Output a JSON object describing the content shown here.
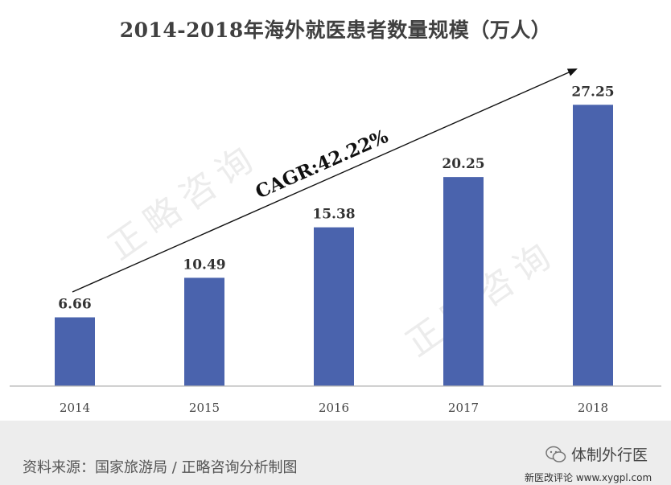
{
  "title": "2014-2018年海外就医患者数量规模（万人）",
  "watermark": "正略咨询",
  "annotation": "CAGR:42.22%",
  "chart_data": {
    "type": "bar",
    "title": "2014-2018年海外就医患者数量规模（万人）",
    "categories": [
      "2014",
      "2015",
      "2016",
      "2017",
      "2018"
    ],
    "values": [
      6.66,
      10.49,
      15.38,
      20.25,
      27.25
    ],
    "data_labels": [
      "6.66",
      "10.49",
      "15.38",
      "20.25",
      "27.25"
    ],
    "annotation": "CAGR:42.22%",
    "xlabel": "",
    "ylabel": "",
    "ylim": [
      0,
      30
    ],
    "grid": false,
    "legend": "none",
    "bar_color": "#4a63ad"
  },
  "footer": {
    "source": "资料来源：国家旅游局 / 正略咨询分析制图",
    "brand": "体制外行医",
    "site": "新医改评论 www.xygpl.com",
    "brand_icon": "wechat-icon"
  }
}
